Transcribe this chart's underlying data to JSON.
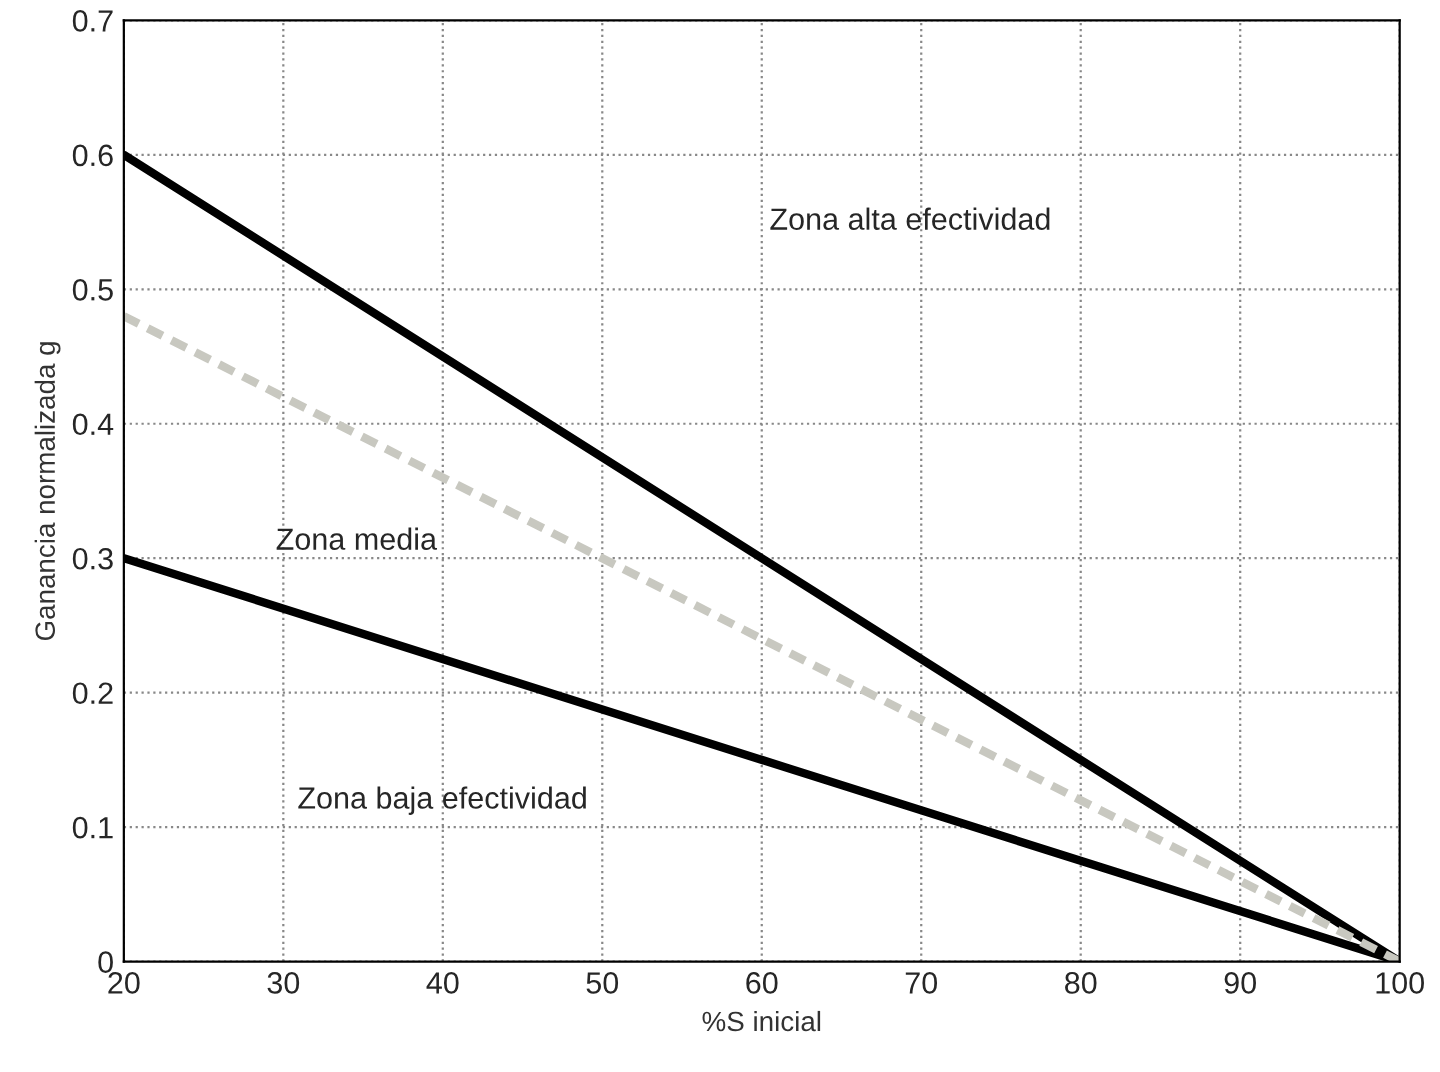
{
  "chart_data": {
    "type": "line",
    "xlabel": "%S inicial",
    "ylabel": "Ganancia normalizada g",
    "x": [
      20,
      100
    ],
    "series": [
      {
        "values": [
          0.6,
          0
        ],
        "color": "#000000",
        "line_style": "solid"
      },
      {
        "values": [
          0.3,
          0
        ],
        "color": "#000000",
        "line_style": "solid"
      },
      {
        "values": [
          0.48,
          0
        ],
        "color": "#c8c8c0",
        "line_style": "dashed"
      }
    ],
    "xlim": [
      20,
      100
    ],
    "xticks": [
      20,
      30,
      40,
      50,
      60,
      70,
      80,
      90,
      100
    ],
    "ylim": [
      0,
      0.7
    ],
    "yticks": [
      0,
      0.1,
      0.2,
      0.3,
      0.4,
      0.5,
      0.6,
      0.7
    ],
    "grid": true,
    "marker": "none",
    "annotations": [
      "Zona alta efectividad",
      "Zona media",
      "Zona baja efectividad"
    ]
  }
}
